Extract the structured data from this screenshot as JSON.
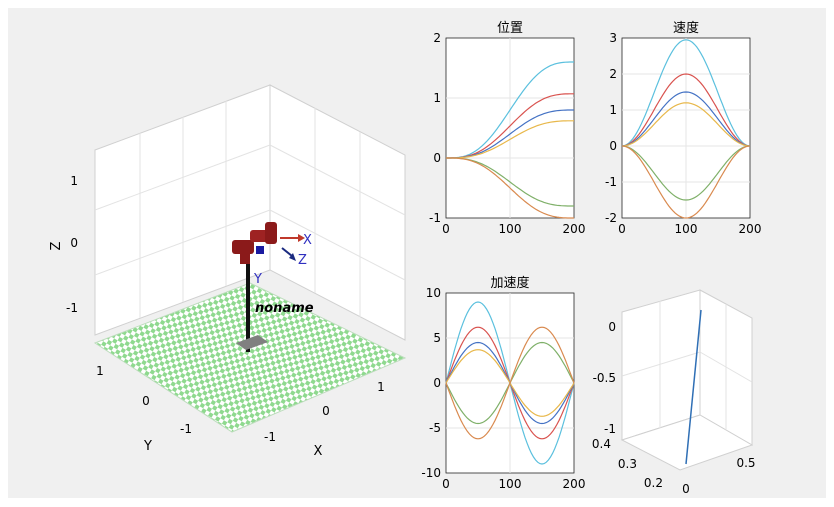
{
  "figure": {
    "left_view": {
      "axis_labels": {
        "x": "X",
        "y": "Y",
        "z": "Z"
      },
      "z_ticks": [
        "1",
        "0",
        "-1"
      ],
      "y_ticks": [
        "1",
        "0",
        "-1"
      ],
      "x_ticks": [
        "-1",
        "0",
        "1"
      ],
      "robot_name": "noname",
      "frame_labels": {
        "x": "X",
        "y": "Y",
        "z": "Z"
      }
    },
    "bottom_right_view": {
      "z_ticks": [
        "0",
        "-0.5",
        "-1"
      ],
      "y_ticks": [
        "0.4",
        "0.3",
        "0.2"
      ],
      "x_ticks": [
        "0",
        "0.5"
      ]
    },
    "colors": {
      "series": [
        "#d9534f",
        "#4472c4",
        "#e8b84b",
        "#7fb069",
        "#5bc0de"
      ],
      "floor_green": "#8fd98f",
      "robot": "#8b1a1a"
    }
  },
  "chart_data": [
    {
      "type": "line",
      "title": "位置",
      "x_ticks": [
        "0",
        "100",
        "200"
      ],
      "y_ticks": [
        "2",
        "1",
        "0",
        "-1"
      ],
      "xlim": [
        0,
        200
      ],
      "ylim": [
        -1,
        2
      ],
      "grid": true,
      "series": [
        {
          "color": "#5bc0de",
          "final": 1.6
        },
        {
          "color": "#d9534f",
          "final": 1.07
        },
        {
          "color": "#4472c4",
          "final": 0.8
        },
        {
          "color": "#e8b84b",
          "final": 0.62
        },
        {
          "color": "#7fb069",
          "final": -0.8
        },
        {
          "color": "#d98a4f",
          "final": -1.0
        }
      ]
    },
    {
      "type": "line",
      "title": "速度",
      "x_ticks": [
        "0",
        "100",
        "200"
      ],
      "y_ticks": [
        "3",
        "2",
        "1",
        "0",
        "-1",
        "-2"
      ],
      "xlim": [
        0,
        200
      ],
      "ylim": [
        -2,
        3
      ],
      "grid": true,
      "series": [
        {
          "color": "#5bc0de",
          "peak": 2.95
        },
        {
          "color": "#d9534f",
          "peak": 2.0
        },
        {
          "color": "#4472c4",
          "peak": 1.5
        },
        {
          "color": "#e8b84b",
          "peak": 1.2
        },
        {
          "color": "#7fb069",
          "peak": -1.5
        },
        {
          "color": "#d98a4f",
          "peak": -2.0
        }
      ]
    },
    {
      "type": "line",
      "title": "加速度",
      "x_ticks": [
        "0",
        "100",
        "200"
      ],
      "y_ticks": [
        "10",
        "5",
        "0",
        "-5",
        "-10"
      ],
      "xlim": [
        0,
        200
      ],
      "ylim": [
        -10,
        10
      ],
      "grid": true,
      "series": [
        {
          "color": "#5bc0de",
          "amp": 9.0
        },
        {
          "color": "#d9534f",
          "amp": 6.2
        },
        {
          "color": "#4472c4",
          "amp": 4.5
        },
        {
          "color": "#e8b84b",
          "amp": 3.7
        },
        {
          "color": "#7fb069",
          "amp": -4.5
        },
        {
          "color": "#d98a4f",
          "amp": -6.2
        }
      ]
    }
  ]
}
